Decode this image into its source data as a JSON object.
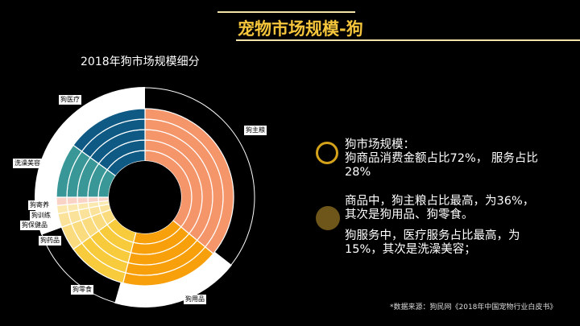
{
  "title": "宠物市场规模-狗",
  "colors": {
    "title": "#F5C53C",
    "line": "#F3E3A6",
    "ring_icon": "#D4A21A",
    "dot_icon": "#6E561A"
  },
  "chart_data": {
    "type": "pie",
    "subtype": "multi-ring donut",
    "title": "2018年狗市场规模细分",
    "unit": "%",
    "slices": [
      {
        "label": "狗主粮",
        "value": 36,
        "color": "#F4956A"
      },
      {
        "label": "狗用品",
        "value": 18,
        "color": "#F7A00C"
      },
      {
        "label": "狗零食",
        "value": 11,
        "color": "#F8CB3C"
      },
      {
        "label": "狗药品",
        "value": 4.5,
        "color": "#FADB7E"
      },
      {
        "label": "狗保健品",
        "value": 2.5,
        "color": "#FBE29A"
      },
      {
        "label": "狗训练",
        "value": 1.5,
        "color": "#FBE8AE"
      },
      {
        "label": "狗寄养",
        "value": 1.5,
        "color": "#F8D3C6"
      },
      {
        "label": "洗澡美容",
        "value": 10,
        "color": "#3A9797"
      },
      {
        "label": "狗医疗",
        "value": 15,
        "color": "#0E5A85"
      }
    ],
    "rings": 5
  },
  "notes": {
    "n1_line1": "狗市场规模：",
    "n1_line2": "狗商品消费金额占比72%， 服务占比",
    "n1_line3": "28%",
    "n2_line1": "商品中，狗主粮占比最高，为36%，",
    "n2_line2": "其次是狗用品、狗零食。",
    "n3_line1": "狗服务中，医疗服务占比最高，为",
    "n3_line2": "15%，其次是洗澡美容；"
  },
  "source": "*数据来源：狗民网《2018年中国宠物行业白皮书》"
}
